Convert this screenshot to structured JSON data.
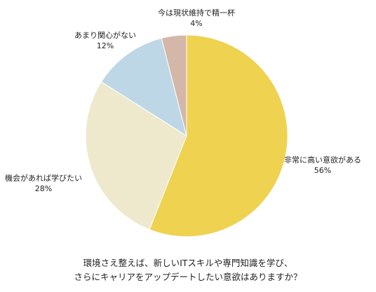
{
  "chart_data": {
    "type": "pie",
    "title": "環境さえ整えば、新しいITスキルや専門知識を学び、さらにキャリアをアップデートしたい意欲はありますか？",
    "title_lines": [
      "環境さえ整えば、新しいITスキルや専門知識を学び、",
      "さらにキャリアをアップデートしたい意欲はありますか？"
    ],
    "start": "top",
    "direction": "clockwise",
    "slices": [
      {
        "label": "非常に高い意欲がある",
        "value": 56,
        "value_label": "56%",
        "color": "#EED250"
      },
      {
        "label": "機会があれば学びたい",
        "value": 28,
        "value_label": "28%",
        "color": "#EEE9CD"
      },
      {
        "label": "あまり関心がない",
        "value": 12,
        "value_label": "12%",
        "color": "#BDD7E6"
      },
      {
        "label": "今は現状維持で精一杯",
        "value": 4,
        "value_label": "4%",
        "color": "#D5B7AA"
      }
    ]
  }
}
